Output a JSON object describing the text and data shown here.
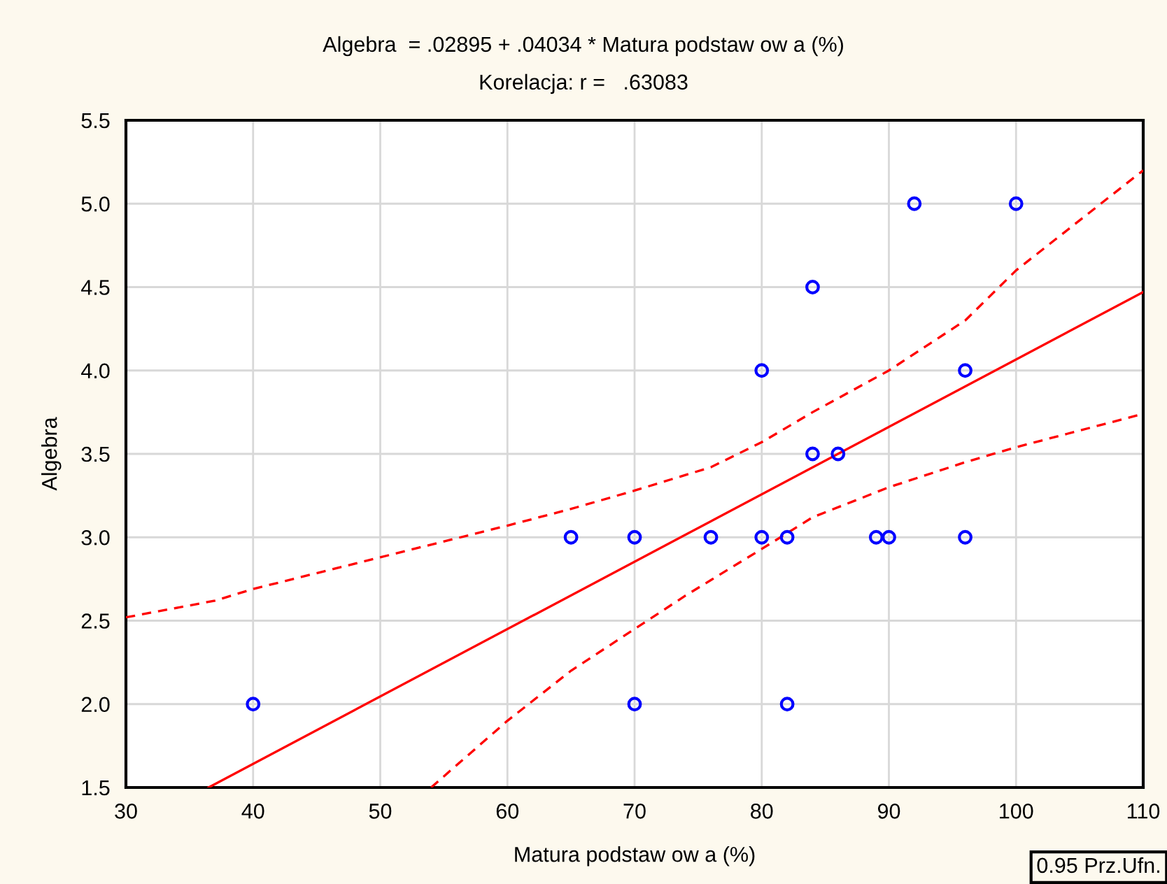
{
  "chart_data": {
    "type": "scatter",
    "title": "Algebra  = .02895 + .04034 * Matura podstaw ow a (%)",
    "subtitle": "Korelacja: r =   .63083",
    "xlabel": "Matura podstaw ow a (%)",
    "ylabel": "Algebra",
    "xlim": [
      30,
      110
    ],
    "ylim": [
      1.5,
      5.5
    ],
    "xticks": [
      30,
      40,
      50,
      60,
      70,
      80,
      90,
      100,
      110
    ],
    "yticks": [
      {
        "value": 1.5,
        "label": "1.5"
      },
      {
        "value": 2.0,
        "label": "2.0"
      },
      {
        "value": 2.5,
        "label": "2.5"
      },
      {
        "value": 3.0,
        "label": "3.0"
      },
      {
        "value": 3.5,
        "label": "3.5"
      },
      {
        "value": 4.0,
        "label": "4.0"
      },
      {
        "value": 4.5,
        "label": "4.5"
      },
      {
        "value": 5.0,
        "label": "5.0"
      },
      {
        "value": 5.5,
        "label": "5.5"
      }
    ],
    "grid": true,
    "legend": false,
    "annotations": [
      "0.95 Prz.Ufn."
    ],
    "series": [
      {
        "color": "#0000ff",
        "marker": "circle",
        "x": [
          40,
          65,
          70,
          70,
          76,
          80,
          80,
          82,
          82,
          84,
          84,
          86,
          89,
          90,
          92,
          96,
          96,
          100
        ],
        "values": [
          2,
          3,
          3,
          2,
          3,
          4,
          3,
          3,
          2,
          4.5,
          3.5,
          3.5,
          3,
          3,
          5,
          4,
          3,
          5
        ]
      },
      {
        "type": "line",
        "color": "#ff0000",
        "line_style": "solid",
        "marker": "none",
        "x": [
          36.5,
          110
        ],
        "values": [
          1.5,
          4.47
        ]
      },
      {
        "type": "line",
        "color": "#ff0000",
        "line_style": "dashed",
        "marker": "none",
        "x": [
          30,
          37,
          40,
          50,
          60,
          65,
          70,
          76,
          80,
          84,
          90,
          96,
          100,
          110
        ],
        "values": [
          2.52,
          2.62,
          2.69,
          2.88,
          3.07,
          3.17,
          3.28,
          3.42,
          3.57,
          3.75,
          4.0,
          4.3,
          4.6,
          5.2
        ]
      },
      {
        "type": "line",
        "color": "#ff0000",
        "line_style": "dashed",
        "marker": "none",
        "x": [
          54,
          60,
          65,
          70,
          74,
          80,
          84,
          90,
          96,
          100,
          110
        ],
        "values": [
          1.5,
          1.9,
          2.2,
          2.45,
          2.65,
          2.93,
          3.12,
          3.3,
          3.45,
          3.54,
          3.74
        ]
      }
    ]
  }
}
